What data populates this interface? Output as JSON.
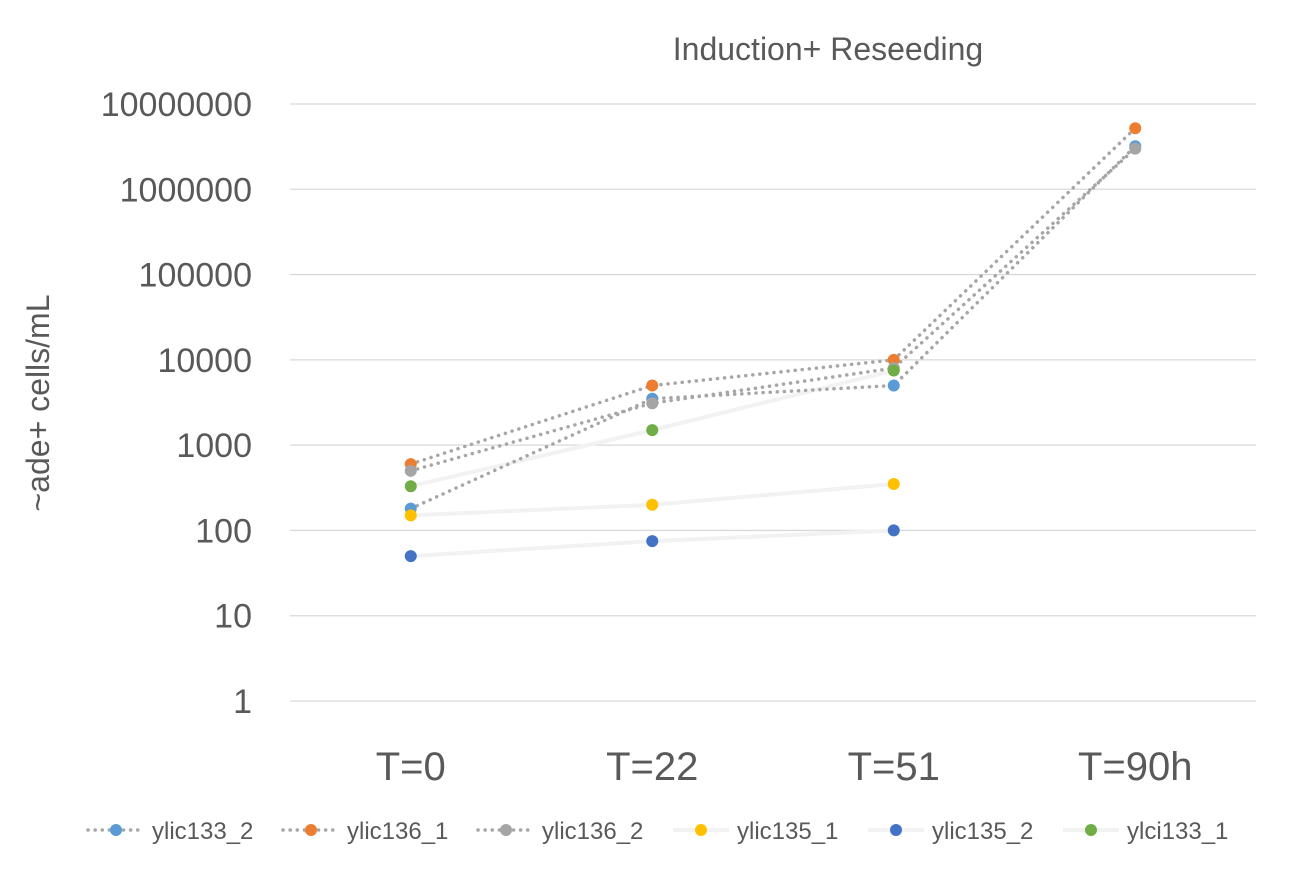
{
  "chart_data": {
    "type": "line",
    "title": "Induction+ Reseeding",
    "xlabel": "",
    "ylabel": "~ade+ cells/mL",
    "yscale": "log",
    "ylim": [
      1,
      10000000
    ],
    "y_ticks": [
      "1",
      "10",
      "100",
      "1000",
      "10000",
      "100000",
      "1000000",
      "10000000"
    ],
    "grid": true,
    "legend_position": "bottom",
    "categories": [
      "T=0",
      "T=22",
      "T=51",
      "T=90h"
    ],
    "series": [
      {
        "name": "ylic133_2",
        "color": "#5B9BD5",
        "line_color": "#A6A6A6",
        "line_style": "dotted",
        "values": [
          180,
          3500,
          5000,
          3200000
        ]
      },
      {
        "name": "ylic136_1",
        "color": "#ED7D31",
        "line_color": "#A6A6A6",
        "line_style": "dotted",
        "values": [
          600,
          5000,
          10000,
          5200000
        ]
      },
      {
        "name": "ylic136_2",
        "color": "#A5A5A5",
        "line_color": "#A6A6A6",
        "line_style": "dotted",
        "values": [
          500,
          3100,
          8000,
          3000000
        ]
      },
      {
        "name": "ylic135_1",
        "color": "#FFC000",
        "line_color": "#F2F2F2",
        "line_style": "solid",
        "values": [
          150,
          200,
          350,
          null
        ]
      },
      {
        "name": "ylic135_2",
        "color": "#4472C4",
        "line_color": "#F2F2F2",
        "line_style": "solid",
        "values": [
          50,
          75,
          100,
          null
        ]
      },
      {
        "name": "ylci133_1",
        "color": "#70AD47",
        "line_color": "#F2F2F2",
        "line_style": "solid",
        "values": [
          330,
          1500,
          7500,
          null
        ]
      }
    ]
  }
}
